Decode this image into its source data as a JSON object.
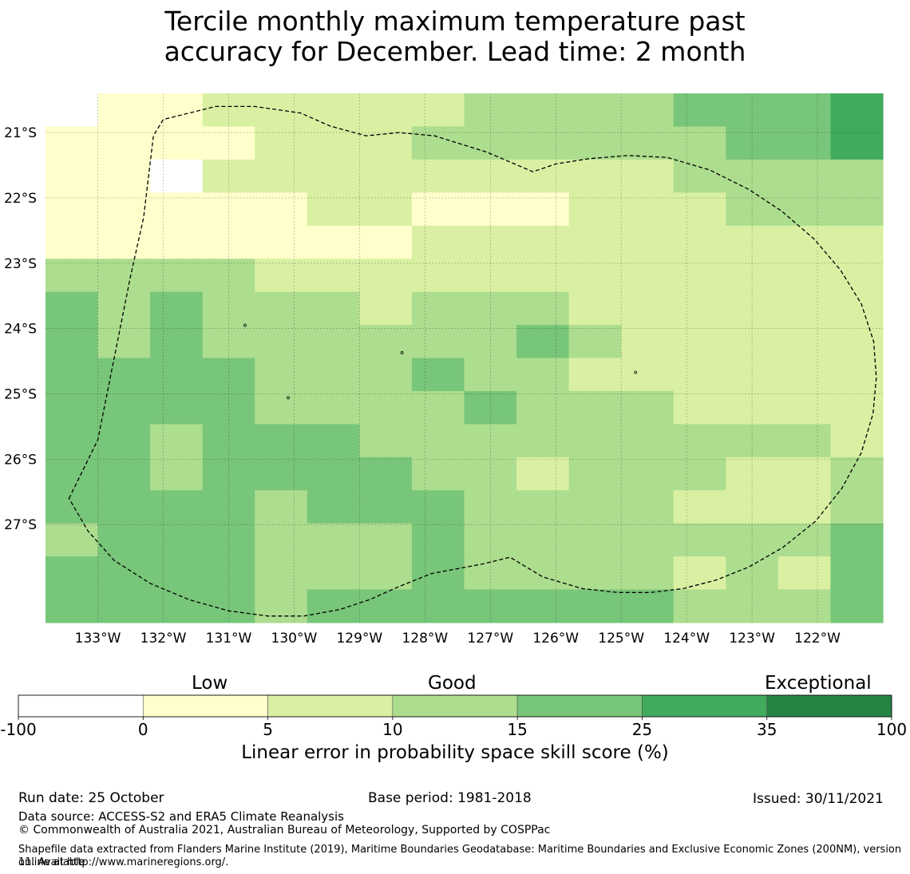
{
  "title_line1": "Tercile monthly maximum temperature past",
  "title_line2": "accuracy for December. Lead time: 2 month",
  "map": {
    "lon_range": [
      -133.8,
      -121.0
    ],
    "lat_range": [
      -20.4,
      -28.5
    ],
    "lon_ticks": [
      {
        "value": -133,
        "label": "133°W"
      },
      {
        "value": -132,
        "label": "132°W"
      },
      {
        "value": -131,
        "label": "131°W"
      },
      {
        "value": -130,
        "label": "130°W"
      },
      {
        "value": -129,
        "label": "129°W"
      },
      {
        "value": -128,
        "label": "128°W"
      },
      {
        "value": -127,
        "label": "127°W"
      },
      {
        "value": -126,
        "label": "126°W"
      },
      {
        "value": -125,
        "label": "125°W"
      },
      {
        "value": -124,
        "label": "124°W"
      },
      {
        "value": -123,
        "label": "123°W"
      },
      {
        "value": -122,
        "label": "122°W"
      }
    ],
    "lat_ticks": [
      {
        "value": -21,
        "label": "21°S"
      },
      {
        "value": -22,
        "label": "22°S"
      },
      {
        "value": -23,
        "label": "23°S"
      },
      {
        "value": -24,
        "label": "24°S"
      },
      {
        "value": -25,
        "label": "25°S"
      },
      {
        "value": -26,
        "label": "26°S"
      },
      {
        "value": -27,
        "label": "27°S"
      }
    ],
    "grid_rows": [
      "0112222233334445",
      "1111222333333445",
      "1102222222223333",
      "1111122111222333",
      "1111111222222222",
      "3333222222222222",
      "4343332333222222",
      "4343333334322222",
      "4444333433222222",
      "4444333343332222",
      "4434443333333332",
      "4434444332333223",
      "4444344433332223",
      "3444333433333334",
      "4444333433332324",
      "4444344444443334"
    ],
    "eez_boundary": [
      [
        -133.44,
        -26.6
      ],
      [
        -133.0,
        -25.7
      ],
      [
        -132.5,
        -23.2
      ],
      [
        -132.3,
        -22.3
      ],
      [
        -132.15,
        -21.05
      ],
      [
        -132.0,
        -20.8
      ],
      [
        -131.2,
        -20.6
      ],
      [
        -130.6,
        -20.6
      ],
      [
        -129.9,
        -20.7
      ],
      [
        -129.45,
        -20.9
      ],
      [
        -128.9,
        -21.05
      ],
      [
        -128.4,
        -21.0
      ],
      [
        -127.85,
        -21.05
      ],
      [
        -127.05,
        -21.3
      ],
      [
        -126.35,
        -21.6
      ],
      [
        -126.0,
        -21.48
      ],
      [
        -125.5,
        -21.4
      ],
      [
        -124.9,
        -21.35
      ],
      [
        -124.3,
        -21.38
      ],
      [
        -123.65,
        -21.57
      ],
      [
        -123.05,
        -21.87
      ],
      [
        -122.55,
        -22.2
      ],
      [
        -122.05,
        -22.63
      ],
      [
        -121.65,
        -23.1
      ],
      [
        -121.33,
        -23.62
      ],
      [
        -121.14,
        -24.2
      ],
      [
        -121.1,
        -24.75
      ],
      [
        -121.15,
        -25.3
      ],
      [
        -121.33,
        -25.9
      ],
      [
        -121.63,
        -26.45
      ],
      [
        -122.03,
        -26.95
      ],
      [
        -122.53,
        -27.35
      ],
      [
        -123.05,
        -27.65
      ],
      [
        -123.55,
        -27.85
      ],
      [
        -124.05,
        -27.98
      ],
      [
        -124.55,
        -28.04
      ],
      [
        -125.05,
        -28.04
      ],
      [
        -125.6,
        -27.98
      ],
      [
        -126.2,
        -27.8
      ],
      [
        -126.7,
        -27.5
      ],
      [
        -127.1,
        -27.6
      ],
      [
        -127.9,
        -27.75
      ],
      [
        -128.4,
        -27.95
      ],
      [
        -128.85,
        -28.15
      ],
      [
        -129.3,
        -28.3
      ],
      [
        -129.85,
        -28.4
      ],
      [
        -130.4,
        -28.4
      ],
      [
        -131.0,
        -28.32
      ],
      [
        -131.6,
        -28.15
      ],
      [
        -132.2,
        -27.9
      ],
      [
        -132.75,
        -27.55
      ],
      [
        -133.15,
        -27.1
      ],
      [
        -133.44,
        -26.6
      ]
    ],
    "islands": [
      {
        "lon": -130.75,
        "lat": -23.95
      },
      {
        "lon": -128.35,
        "lat": -24.37
      },
      {
        "lon": -130.09,
        "lat": -25.06
      },
      {
        "lon": -124.78,
        "lat": -24.67
      }
    ]
  },
  "colorbar": {
    "category_low": "Low",
    "category_good": "Good",
    "category_exceptional": "Exceptional",
    "bins": [
      {
        "from": -100,
        "to": 0,
        "color": "#ffffff"
      },
      {
        "from": 0,
        "to": 5,
        "color": "#ffffcc"
      },
      {
        "from": 5,
        "to": 10,
        "color": "#d9f0a3"
      },
      {
        "from": 10,
        "to": 15,
        "color": "#addd8e"
      },
      {
        "from": 15,
        "to": 25,
        "color": "#78c679"
      },
      {
        "from": 25,
        "to": 35,
        "color": "#41ab5d"
      },
      {
        "from": 35,
        "to": 100,
        "color": "#238443"
      }
    ],
    "tick_labels": [
      "-100",
      "0",
      "5",
      "10",
      "15",
      "25",
      "35",
      "100"
    ],
    "axis_label": "Linear error in probability space skill score (%)"
  },
  "footer": {
    "run_date": "Run date: 25 October",
    "base_period": "Base period: 1981-2018",
    "issued": "Issued: 30/11/2021",
    "data_source": "Data source: ACCESS-S2 and ERA5 Climate Reanalysis",
    "copyright": "© Commonwealth of Australia 2021, Australian Bureau of Meteorology, Supported by COSPPac",
    "shapefile_line1": "Shapefile data extracted from Flanders Marine Institute (2019), Maritime Boundaries Geodatabase: Maritime Boundaries and Exclusive Economic Zones (200NM), version 11. Available",
    "shapefile_line2": "online at http://www.marineregions.org/."
  }
}
